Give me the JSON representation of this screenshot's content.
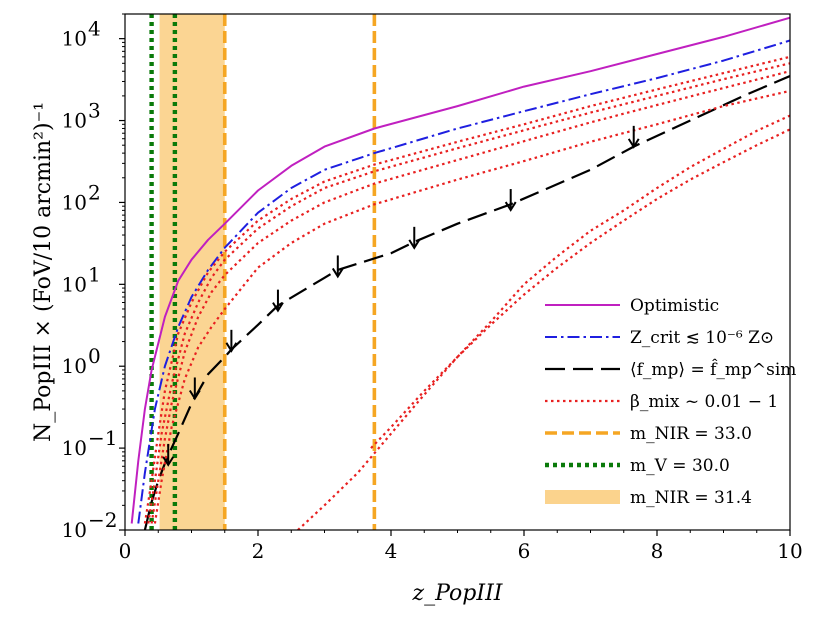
{
  "chart_data": {
    "type": "line",
    "title": "",
    "xlabel": "z_PopIII",
    "ylabel": "N_PopIII × (FoV/10 arcmin²)⁻¹",
    "xlim": [
      0,
      10
    ],
    "ylim": [
      0.01,
      20000
    ],
    "yscale": "log",
    "x_ticks": [
      0,
      2,
      4,
      6,
      8,
      10
    ],
    "x_tick_labels": [
      "0",
      "2",
      "4",
      "6",
      "8",
      "10"
    ],
    "y_ticks": [
      0.01,
      0.1,
      1,
      10,
      100,
      1000,
      10000
    ],
    "y_tick_labels": [
      {
        "base": "10",
        "exp": "−2"
      },
      {
        "base": "10",
        "exp": "−1"
      },
      {
        "base": "10",
        "exp": "0"
      },
      {
        "base": "10",
        "exp": "1"
      },
      {
        "base": "10",
        "exp": "2"
      },
      {
        "base": "10",
        "exp": "3"
      },
      {
        "base": "10",
        "exp": "4"
      }
    ],
    "legend_position": "lower-right",
    "colors": {
      "optimistic": "#c020c0",
      "zcrit": "#1f1fe0",
      "fmp": "#000000",
      "beta": "#e82020",
      "mnir33": "#f5a623",
      "mv30": "#0a7a0a",
      "mnir314": "#fbd38d"
    },
    "series": [
      {
        "name": "Optimistic",
        "key": "optimistic",
        "style": "solid",
        "x": [
          0.1,
          0.2,
          0.3,
          0.4,
          0.6,
          0.8,
          1.0,
          1.25,
          1.5,
          2.0,
          2.5,
          3.0,
          3.75,
          5.0,
          6.0,
          7.0,
          8.0,
          9.0,
          10.0
        ],
        "y": [
          0.012,
          0.07,
          0.3,
          0.9,
          4,
          11,
          20,
          35,
          55,
          140,
          280,
          480,
          800,
          1500,
          2600,
          4000,
          6500,
          10500,
          18000
        ]
      },
      {
        "name": "Z_crit ≲ 10⁻⁶ Z⊙",
        "key": "zcrit",
        "style": "dashdot",
        "x": [
          0.2,
          0.3,
          0.45,
          0.6,
          0.8,
          1.0,
          1.25,
          1.5,
          2.0,
          2.5,
          3.0,
          3.75,
          5.0,
          6.0,
          7.0,
          8.0,
          9.0,
          10.0
        ],
        "y": [
          0.012,
          0.05,
          0.3,
          1,
          3,
          7,
          15,
          28,
          75,
          150,
          250,
          400,
          800,
          1300,
          2100,
          3300,
          5400,
          9500
        ]
      },
      {
        "name": "⟨f_mp⟩ = f̂_mp^sim",
        "key": "fmp",
        "style": "longdash",
        "x": [
          0.3,
          0.4,
          0.5,
          0.6,
          0.7,
          0.8,
          1.0,
          1.25,
          1.5,
          1.6,
          2.0,
          2.3,
          3.0,
          3.2,
          4.0,
          4.35,
          5.0,
          5.8,
          7.0,
          7.65,
          8.5,
          9.3,
          10.0
        ],
        "y": [
          0.01,
          0.022,
          0.04,
          0.065,
          0.1,
          0.15,
          0.35,
          0.8,
          1.3,
          1.6,
          3.2,
          5.5,
          12,
          15,
          24,
          33,
          55,
          95,
          250,
          480,
          1000,
          2000,
          3500
        ]
      },
      {
        "name": "β_mix ~ 0.01 − 1",
        "key": "beta",
        "style": "dotted",
        "x": [
          0.3,
          0.4,
          0.5,
          0.6,
          0.8,
          1.0,
          1.25,
          1.5,
          2.0,
          2.5,
          3.0,
          3.75,
          5.0,
          6.0,
          7.0,
          8.0,
          9.0,
          10.0
        ],
        "y": [
          0.012,
          0.04,
          0.15,
          0.5,
          2.5,
          6,
          14,
          25,
          60,
          110,
          180,
          290,
          550,
          900,
          1500,
          2400,
          3800,
          6000
        ]
      },
      {
        "name": "",
        "key": "beta",
        "style": "dotted",
        "legend": false,
        "x": [
          0.35,
          0.45,
          0.55,
          0.7,
          0.9,
          1.1,
          1.3,
          1.5,
          2.0,
          2.5,
          3.0,
          3.75,
          5.0,
          6.0,
          7.0,
          8.0,
          9.0,
          10.0
        ],
        "y": [
          0.012,
          0.04,
          0.15,
          0.6,
          2.5,
          6,
          12,
          20,
          48,
          90,
          150,
          240,
          460,
          760,
          1250,
          2000,
          3200,
          5000
        ]
      },
      {
        "name": "",
        "key": "beta",
        "style": "dotted",
        "legend": false,
        "x": [
          0.4,
          0.5,
          0.6,
          0.7,
          0.9,
          1.1,
          1.3,
          1.5,
          2.0,
          2.5,
          3.0,
          3.75,
          5.0,
          6.0,
          7.0,
          8.0,
          9.0,
          10.0
        ],
        "y": [
          0.012,
          0.04,
          0.13,
          0.35,
          1.5,
          4,
          8,
          13,
          32,
          60,
          100,
          170,
          330,
          560,
          950,
          1550,
          2500,
          4000
        ]
      },
      {
        "name": "",
        "key": "beta",
        "style": "dotted",
        "legend": false,
        "x": [
          0.45,
          0.55,
          0.7,
          0.9,
          1.1,
          1.3,
          1.5,
          2.0,
          2.5,
          3.0,
          3.75,
          5.0,
          6.0,
          7.0,
          8.0,
          9.0,
          10.0
        ],
        "y": [
          0.012,
          0.04,
          0.18,
          0.7,
          1.7,
          3,
          5,
          16,
          32,
          55,
          95,
          190,
          320,
          550,
          900,
          1500,
          2300
        ]
      },
      {
        "name": "",
        "key": "beta",
        "style": "dotted",
        "legend": false,
        "x": [
          2.6,
          3.0,
          3.5,
          4.0,
          4.5,
          5.0,
          5.5,
          6.0,
          6.5,
          7.0,
          7.5,
          8.0,
          8.5,
          9.0,
          9.5,
          10.0
        ],
        "y": [
          0.01,
          0.02,
          0.05,
          0.15,
          0.45,
          1.3,
          3.5,
          10,
          22,
          45,
          80,
          150,
          270,
          450,
          750,
          1150
        ]
      },
      {
        "name": "",
        "key": "beta",
        "style": "dotted",
        "legend": false,
        "x": [
          3.7,
          4.0,
          4.5,
          5.0,
          5.5,
          6.0,
          6.5,
          7.0,
          7.5,
          8.0,
          8.5,
          9.0,
          9.5,
          10.0
        ],
        "y": [
          0.1,
          0.18,
          0.5,
          1.3,
          3.2,
          7.5,
          16,
          32,
          60,
          110,
          190,
          310,
          500,
          780
        ]
      }
    ],
    "upper_limit_arrows": {
      "key": "fmp",
      "x": [
        0.65,
        1.05,
        1.6,
        2.3,
        3.2,
        4.35,
        5.8,
        7.65
      ],
      "y": [
        0.085,
        0.55,
        2.1,
        6.5,
        17,
        38,
        110,
        650
      ]
    },
    "vlines": [
      {
        "name": "m_NIR = 33.0",
        "key": "mnir33",
        "style": "dashed",
        "x": [
          1.5,
          3.75
        ]
      },
      {
        "name": "m_V = 30.0",
        "key": "mv30",
        "style": "dotted",
        "x": [
          0.4,
          0.75
        ]
      }
    ],
    "vspans": [
      {
        "name": "m_NIR = 31.4",
        "key": "mnir314",
        "x0": 0.52,
        "x1": 1.5
      }
    ],
    "legend": [
      {
        "kind": "line",
        "key": "optimistic",
        "style": "solid",
        "label": "Optimistic"
      },
      {
        "kind": "line",
        "key": "zcrit",
        "style": "dashdot",
        "label": "Z_crit ≲ 10⁻⁶ Z⊙"
      },
      {
        "kind": "line",
        "key": "fmp",
        "style": "longdash",
        "label": "⟨f_mp⟩ = f̂_mp^sim"
      },
      {
        "kind": "line",
        "key": "beta",
        "style": "dotted",
        "label": "β_mix ~ 0.01 − 1"
      },
      {
        "kind": "line",
        "key": "mnir33",
        "style": "dashed",
        "label": "m_NIR = 33.0"
      },
      {
        "kind": "line",
        "key": "mv30",
        "style": "dotted",
        "label": "m_V = 30.0"
      },
      {
        "kind": "patch",
        "key": "mnir314",
        "label": "m_NIR = 31.4"
      }
    ]
  }
}
